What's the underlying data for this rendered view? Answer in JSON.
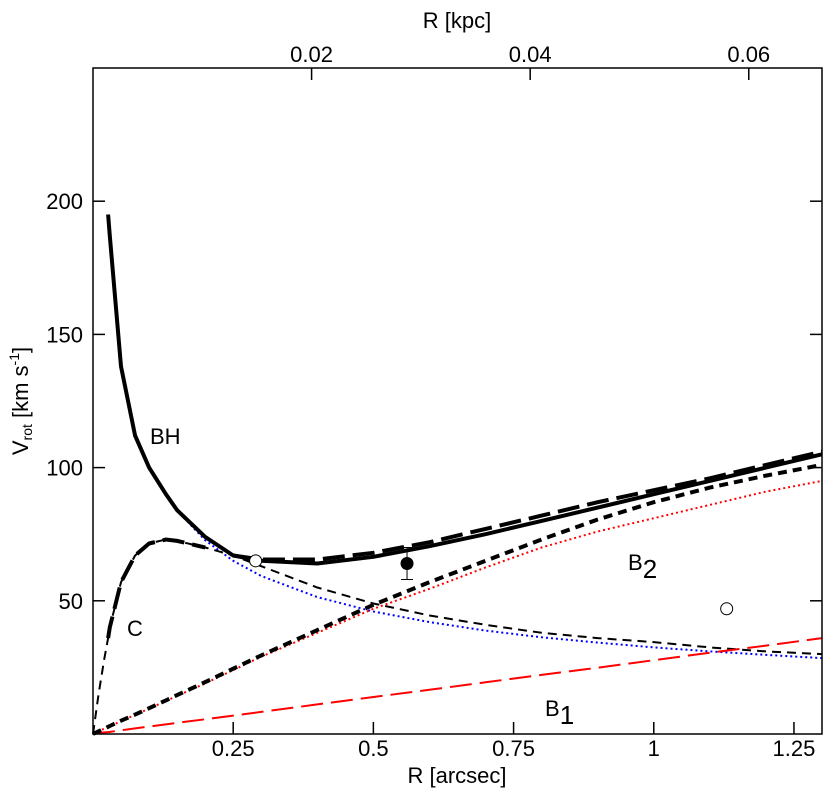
{
  "chart_data": {
    "type": "line",
    "x_label": "R [arcsec]",
    "x2_label": "R [kpc]",
    "y_label": [
      "V",
      "rot",
      " [km s",
      "-1",
      "]"
    ],
    "xlim": [
      0,
      1.3
    ],
    "xticks": [
      0.25,
      0.5,
      0.75,
      1,
      1.25
    ],
    "x2lim": [
      0,
      0.0667
    ],
    "x2ticks": [
      0.02,
      0.04,
      0.06
    ],
    "ylim": [
      0,
      250
    ],
    "yticks": [
      50,
      100,
      150,
      200
    ],
    "annotations": [
      {
        "text": "BH"
      },
      {
        "text": "C"
      },
      {
        "text": "B",
        "sub": "2"
      },
      {
        "text": "B",
        "sub": "1"
      }
    ],
    "x": [
      0,
      0.01,
      0.02,
      0.027,
      0.03,
      0.05,
      0.075,
      0.1,
      0.13,
      0.15,
      0.2,
      0.25,
      0.3,
      0.4,
      0.5,
      0.6,
      0.7,
      0.8,
      0.9,
      1,
      1.1,
      1.2,
      1.3
    ],
    "series": [
      {
        "color": "#0000ff",
        "width": 2,
        "dash": "dotted",
        "values": [
          null,
          null,
          null,
          null,
          null,
          null,
          null,
          null,
          null,
          83.9,
          72.7,
          65,
          59.3,
          51.4,
          46,
          42,
          38.8,
          36.3,
          34.3,
          32.5,
          31,
          29.7,
          28.5
        ]
      },
      {
        "color": "#000000",
        "width": 2,
        "dash": "dashed",
        "values": [
          0,
          15,
          28,
          36,
          40,
          57,
          67,
          71.5,
          73,
          72.5,
          70,
          67,
          63,
          55,
          49,
          44.5,
          41,
          38,
          36,
          34.5,
          32.5,
          31,
          30
        ]
      },
      {
        "color": "#000000",
        "width": 4,
        "dash": "longdash",
        "values": [
          null,
          null,
          null,
          36,
          40,
          57,
          67,
          71.5,
          73,
          72.5,
          70,
          null,
          null,
          null,
          null,
          null,
          null,
          null,
          null,
          null,
          null,
          null,
          null
        ]
      },
      {
        "color": "#ff0000",
        "width": 2,
        "dash": "dotted",
        "values": [
          0,
          1,
          2,
          2.6,
          2.9,
          4.8,
          7.2,
          9.5,
          12.4,
          14.3,
          19,
          24,
          29,
          38,
          47,
          54.5,
          62.5,
          70,
          76,
          81,
          86,
          91,
          95
        ]
      },
      {
        "color": "#ff0000",
        "width": 2,
        "dash": "longdash",
        "values": [
          0,
          0.3,
          0.6,
          0.7,
          0.8,
          1.4,
          2.1,
          2.8,
          3.6,
          4.2,
          5.5,
          6.9,
          8.3,
          11.1,
          13.9,
          16.6,
          19.4,
          22.2,
          24.9,
          27.7,
          30.5,
          33.2,
          36
        ]
      },
      {
        "color": "#000000",
        "width": 4,
        "dash": "dashed",
        "values": [
          0,
          1,
          2,
          2.7,
          3,
          5,
          7.3,
          9.7,
          12.6,
          14.6,
          19.5,
          24.5,
          29.5,
          39,
          48.5,
          57,
          65,
          73,
          80.5,
          87,
          92.5,
          97,
          101
        ]
      },
      {
        "color": "#000000",
        "width": 4,
        "dash": "solid",
        "values": [
          null,
          null,
          null,
          195,
          187,
          138,
          112,
          100,
          90,
          84,
          74,
          67,
          65,
          64,
          66.5,
          70.5,
          75,
          80,
          85,
          90,
          95,
          100,
          105
        ]
      },
      {
        "color": "#000000",
        "width": 4,
        "dash": "longdash",
        "values": [
          null,
          null,
          null,
          null,
          null,
          null,
          null,
          null,
          null,
          null,
          null,
          67,
          65.5,
          65.5,
          68,
          72,
          77,
          82,
          87,
          91.5,
          96,
          101,
          106
        ]
      }
    ],
    "points": {
      "x": [
        0.29,
        0.56,
        1.13
      ],
      "y": [
        65,
        64,
        47
      ],
      "filled": [
        false,
        true,
        false
      ],
      "error": [
        null,
        6,
        null
      ]
    }
  }
}
